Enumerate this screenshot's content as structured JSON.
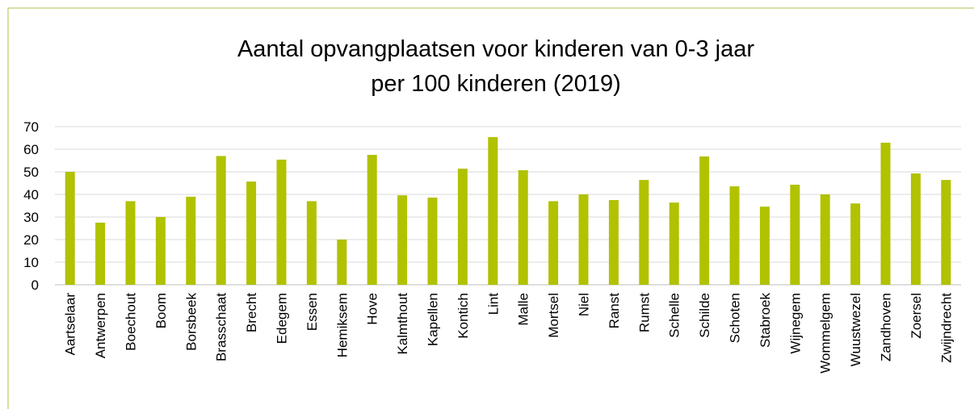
{
  "chart_data": {
    "type": "bar",
    "title": [
      "Aantal opvangplaatsen voor kinderen van 0-3 jaar",
      "per 100 kinderen (2019)"
    ],
    "categories": [
      "Aartselaar",
      "Antwerpen",
      "Boechout",
      "Boom",
      "Borsbeek",
      "Brasschaat",
      "Brecht",
      "Edegem",
      "Essen",
      "Hemiksem",
      "Hove",
      "Kalmthout",
      "Kapellen",
      "Kontich",
      "Lint",
      "Malle",
      "Mortsel",
      "Niel",
      "Ranst",
      "Rumst",
      "Schelle",
      "Schilde",
      "Schoten",
      "Stabroek",
      "Wijnegem",
      "Wommelgem",
      "Wuustwezel",
      "Zandhoven",
      "Zoersel",
      "Zwijndrecht"
    ],
    "values": [
      50,
      27.5,
      37,
      30,
      39,
      57,
      45.7,
      55.4,
      37,
      20,
      57.5,
      39.6,
      38.6,
      51.4,
      65.4,
      50.7,
      37,
      40,
      37.5,
      46.4,
      36.4,
      56.8,
      43.6,
      34.6,
      44.3,
      40,
      36,
      62.9,
      49.3,
      46.4
    ],
    "color": "#b0c200",
    "ylim": [
      0,
      70
    ],
    "yticks": [
      0,
      10,
      20,
      30,
      40,
      50,
      60,
      70
    ],
    "grid": true
  }
}
